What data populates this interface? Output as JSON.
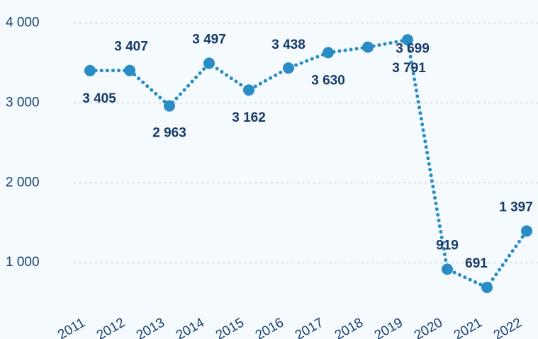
{
  "chart_data": {
    "type": "line",
    "categories": [
      "2011",
      "2012",
      "2013",
      "2014",
      "2015",
      "2016",
      "2017",
      "2018",
      "2019",
      "2020",
      "2021",
      "2022"
    ],
    "series": [
      {
        "name": null,
        "color": "#2a8cc4",
        "values": [
          3405,
          3407,
          2963,
          3497,
          3162,
          3438,
          3630,
          3699,
          3791,
          919,
          691,
          1397
        ],
        "value_labels": [
          "3 405",
          "3 407",
          "2 963",
          "3 497",
          "3 162",
          "3 438",
          "3 630",
          "3 699",
          "3 791",
          "919",
          "691",
          "1 397"
        ]
      }
    ],
    "ylim": [
      550,
      4050
    ],
    "yticks": [
      {
        "value": 1000,
        "label": "1 000"
      },
      {
        "value": 2000,
        "label": "2 000"
      },
      {
        "value": 3000,
        "label": "3 000"
      },
      {
        "value": 4000,
        "label": "4 000"
      }
    ],
    "grid": true
  }
}
